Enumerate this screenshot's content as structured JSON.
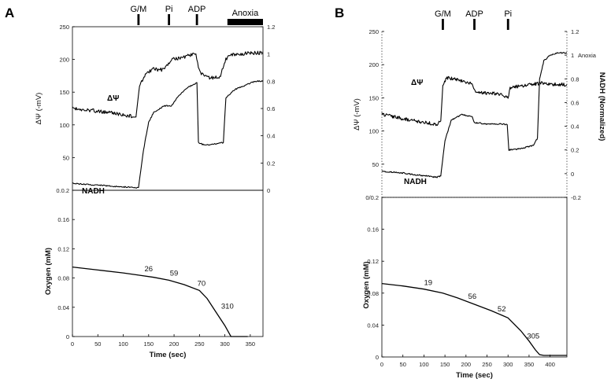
{
  "chart_data": [
    {
      "panel": "A",
      "type": "line",
      "events": [
        {
          "label": "G/M",
          "t": 130
        },
        {
          "label": "Pi",
          "t": 190
        },
        {
          "label": "ADP",
          "t": 245
        },
        {
          "label": "Anoxia",
          "t": [
            305,
            375
          ]
        }
      ],
      "top": {
        "ylabel_left": "ΔΨ (-mV)",
        "ylabel_right": "",
        "ylim_left": [
          0.0,
          250
        ],
        "ylim_right": [
          0,
          1.2
        ],
        "yticks_left": [
          "0.0.2",
          "50",
          "100",
          "150",
          "200",
          "250"
        ],
        "yticks_right": [
          "0",
          "0.2",
          "0.4",
          "0.6",
          "0.8",
          "1",
          "1.2"
        ],
        "series": [
          {
            "name": "ΔΨ",
            "axis": "left",
            "x": [
              0,
              40,
              80,
              125,
              132,
              145,
              160,
              180,
              195,
              215,
              235,
              243,
              248,
              255,
              270,
              290,
              302,
              310,
              330,
              350,
              375
            ],
            "y": [
              125,
              122,
              118,
              112,
              160,
              180,
              185,
              184,
              200,
              203,
              207,
              210,
              185,
              177,
              172,
              173,
              200,
              208,
              208,
              210,
              210
            ]
          },
          {
            "name": "NADH",
            "axis": "right",
            "x": [
              0,
              40,
              80,
              120,
              130,
              140,
              150,
              160,
              180,
              195,
              210,
              230,
              245,
              248,
              260,
              280,
              297,
              302,
              320,
              340,
              360,
              375
            ],
            "y": [
              0.05,
              0.04,
              0.03,
              0.02,
              0.02,
              0.3,
              0.5,
              0.57,
              0.62,
              0.62,
              0.7,
              0.76,
              0.79,
              0.35,
              0.33,
              0.34,
              0.35,
              0.68,
              0.74,
              0.77,
              0.8,
              0.8
            ]
          }
        ]
      },
      "bottom": {
        "ylabel": "Oxygen (mM)",
        "xlabel": "Time (sec)",
        "xlim": [
          0,
          375
        ],
        "ylim": [
          0,
          0.2
        ],
        "xticks": [
          "0",
          "50",
          "100",
          "150",
          "200",
          "250",
          "300",
          "350"
        ],
        "yticks": [
          "0",
          "0.04",
          "0.08",
          "0.12",
          "0.16"
        ],
        "series": [
          {
            "name": "Oxygen",
            "x": [
              0,
              50,
              100,
              130,
              160,
              190,
              220,
              250,
              265,
              280,
              300,
              312,
              320,
              345
            ],
            "y": [
              0.095,
              0.091,
              0.087,
              0.084,
              0.081,
              0.077,
              0.071,
              0.063,
              0.052,
              0.036,
              0.015,
              0.0,
              0.0,
              0.0
            ]
          }
        ],
        "annotations": [
          {
            "text": "26",
            "x": 150,
            "y": 0.086
          },
          {
            "text": "59",
            "x": 200,
            "y": 0.08
          },
          {
            "text": "70",
            "x": 254,
            "y": 0.066
          },
          {
            "text": "310",
            "x": 305,
            "y": 0.035
          }
        ]
      }
    },
    {
      "panel": "B",
      "type": "line",
      "events": [
        {
          "label": "G/M",
          "t": 145
        },
        {
          "label": "ADP",
          "t": 220
        },
        {
          "label": "Pi",
          "t": 300
        }
      ],
      "top": {
        "ylabel_left": "ΔΨ (-mV)",
        "ylabel_right": "NADH (Normalized)",
        "ylim_left": [
          0,
          250
        ],
        "ylim_right": [
          -0.2,
          1.2
        ],
        "yticks_left": [
          "0/0.2",
          "50",
          "100",
          "150",
          "200",
          "250"
        ],
        "yticks_right": [
          "-0.2",
          "0",
          "0.2",
          "0.4",
          "0.6",
          "0.8",
          "1",
          "1.2"
        ],
        "right_annotation": "Anoxia",
        "series": [
          {
            "name": "ΔΨ",
            "axis": "left",
            "x": [
              0,
              40,
              80,
              130,
              140,
              145,
              155,
              175,
              200,
              215,
              220,
              240,
              280,
              300,
              305,
              330,
              360,
              375,
              385,
              400,
              440
            ],
            "y": [
              125,
              120,
              115,
              110,
              115,
              170,
              180,
              178,
              174,
              172,
              160,
              158,
              156,
              150,
              165,
              168,
              170,
              172,
              172,
              170,
              170
            ]
          },
          {
            "name": "NADH",
            "axis": "right",
            "x": [
              0,
              40,
              80,
              130,
              140,
              150,
              165,
              190,
              215,
              220,
              250,
              290,
              298,
              302,
              330,
              360,
              370,
              375,
              385,
              400,
              420,
              440
            ],
            "y": [
              0.02,
              0.01,
              -0.01,
              -0.03,
              -0.02,
              0.28,
              0.45,
              0.5,
              0.48,
              0.43,
              0.42,
              0.42,
              0.41,
              0.2,
              0.21,
              0.24,
              0.3,
              0.8,
              0.95,
              1.0,
              1.02,
              1.02
            ]
          }
        ]
      },
      "bottom": {
        "ylabel": "Oxygen (mM)",
        "xlabel": "Time (sec)",
        "xlim": [
          0,
          440
        ],
        "ylim": [
          0,
          0.2
        ],
        "xticks": [
          "0",
          "50",
          "100",
          "150",
          "200",
          "250",
          "300",
          "350",
          "400"
        ],
        "yticks": [
          "0",
          "0.04",
          "0.08",
          "0.12",
          "0.16"
        ],
        "series": [
          {
            "name": "Oxygen",
            "x": [
              0,
              50,
              100,
              145,
              180,
              220,
              260,
              300,
              330,
              350,
              365,
              375,
              385,
              400,
              440
            ],
            "y": [
              0.092,
              0.089,
              0.085,
              0.08,
              0.074,
              0.066,
              0.058,
              0.049,
              0.033,
              0.02,
              0.009,
              0.003,
              0.002,
              0.002,
              0.002
            ]
          }
        ],
        "annotations": [
          {
            "text": "19",
            "x": 110,
            "y": 0.087
          },
          {
            "text": "56",
            "x": 215,
            "y": 0.07
          },
          {
            "text": "52",
            "x": 285,
            "y": 0.054
          },
          {
            "text": "305",
            "x": 360,
            "y": 0.02
          }
        ]
      }
    }
  ]
}
